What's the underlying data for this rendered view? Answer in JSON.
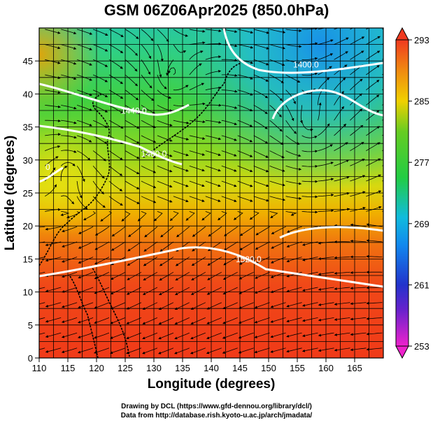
{
  "title": "GSM 06Z06Apr2025 (850.0hPa)",
  "x_axis": {
    "label": "Longitude (degrees)",
    "ticks": [
      "110",
      "115",
      "120",
      "125",
      "130",
      "135",
      "140",
      "145",
      "150",
      "155",
      "160",
      "165"
    ],
    "range": [
      110,
      170
    ]
  },
  "y_axis": {
    "label": "Latitude  (degrees)",
    "ticks": [
      "0",
      "5",
      "10",
      "15",
      "20",
      "25",
      "30",
      "35",
      "40",
      "45"
    ],
    "range": [
      0,
      50
    ]
  },
  "colorbar": {
    "ticks": [
      "253",
      "261",
      "269",
      "277",
      "285",
      "293"
    ],
    "range": [
      253,
      293
    ],
    "colors": [
      "#ee22cc",
      "#2233cc",
      "#11aaee",
      "#22cc22",
      "#f0d000",
      "#f04020"
    ]
  },
  "contours": [
    {
      "label": "1520.0",
      "lon": 146.5,
      "lat": 14.5
    },
    {
      "label": "1480.0",
      "lon": 130.0,
      "lat": 30.5
    },
    {
      "label": "1440.0",
      "lon": 126.5,
      "lat": 37.0
    },
    {
      "label": "1400.0",
      "lon": 156.5,
      "lat": 44.0
    },
    {
      "label": "0",
      "lon": 111.5,
      "lat": 28.5
    }
  ],
  "credits": {
    "drawing": "Drawing by DCL (https://www.gfd-dennou.org/library/dcl/)",
    "data": "Data from http://database.rish.kyoto-u.ac.jp/arch/jmadata/"
  }
}
